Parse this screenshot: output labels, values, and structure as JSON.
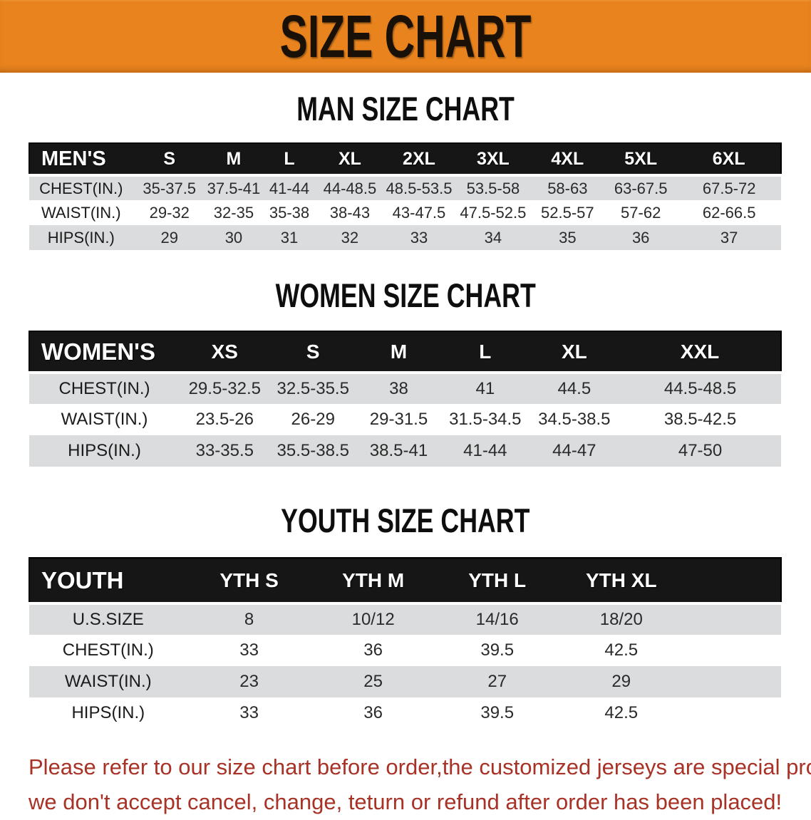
{
  "banner": {
    "title": "SIZE CHART"
  },
  "chart_data": [
    {
      "type": "table",
      "heading": "MAN SIZE CHART",
      "label": "MEN'S",
      "sizes": [
        "S",
        "M",
        "L",
        "XL",
        "2XL",
        "3XL",
        "4XL",
        "5XL",
        "6XL"
      ],
      "rows": [
        {
          "label": "CHEST(IN.)",
          "values": [
            "35-37.5",
            "37.5-41",
            "41-44",
            "44-48.5",
            "48.5-53.5",
            "53.5-58",
            "58-63",
            "63-67.5",
            "67.5-72"
          ]
        },
        {
          "label": "WAIST(IN.)",
          "values": [
            "29-32",
            "32-35",
            "35-38",
            "38-43",
            "43-47.5",
            "47.5-52.5",
            "52.5-57",
            "57-62",
            "62-66.5"
          ]
        },
        {
          "label": "HIPS(IN.)",
          "values": [
            "29",
            "30",
            "31",
            "32",
            "33",
            "34",
            "35",
            "36",
            "37"
          ]
        }
      ]
    },
    {
      "type": "table",
      "heading": "WOMEN SIZE CHART",
      "label": "WOMEN'S",
      "sizes": [
        "XS",
        "S",
        "M",
        "L",
        "XL",
        "XXL"
      ],
      "rows": [
        {
          "label": "CHEST(IN.)",
          "values": [
            "29.5-32.5",
            "32.5-35.5",
            "38",
            "41",
            "44.5",
            "44.5-48.5"
          ]
        },
        {
          "label": "WAIST(IN.)",
          "values": [
            "23.5-26",
            "26-29",
            "29-31.5",
            "31.5-34.5",
            "34.5-38.5",
            "38.5-42.5"
          ]
        },
        {
          "label": "HIPS(IN.)",
          "values": [
            "33-35.5",
            "35.5-38.5",
            "38.5-41",
            "41-44",
            "44-47",
            "47-50"
          ]
        }
      ]
    },
    {
      "type": "table",
      "heading": "YOUTH SIZE CHART",
      "label": "YOUTH",
      "sizes": [
        "YTH S",
        "YTH M",
        "YTH L",
        "YTH XL"
      ],
      "rows": [
        {
          "label": "U.S.SIZE",
          "values": [
            "8",
            "10/12",
            "14/16",
            "18/20"
          ]
        },
        {
          "label": "CHEST(IN.)",
          "values": [
            "33",
            "36",
            "39.5",
            "42.5"
          ]
        },
        {
          "label": "WAIST(IN.)",
          "values": [
            "23",
            "25",
            "27",
            "29"
          ]
        },
        {
          "label": "HIPS(IN.)",
          "values": [
            "33",
            "36",
            "39.5",
            "42.5"
          ]
        }
      ]
    }
  ],
  "footer": {
    "line1": "Please refer to our size chart before order,the customized jerseys are special products,",
    "line2": "we don't accept cancel, change, teturn or refund after order has been placed!"
  },
  "colors": {
    "banner_bg": "#E8831E",
    "table_header_bg": "#161616",
    "stripe_row_bg": "#DBDCDD",
    "disclaimer_text": "#A93226"
  }
}
